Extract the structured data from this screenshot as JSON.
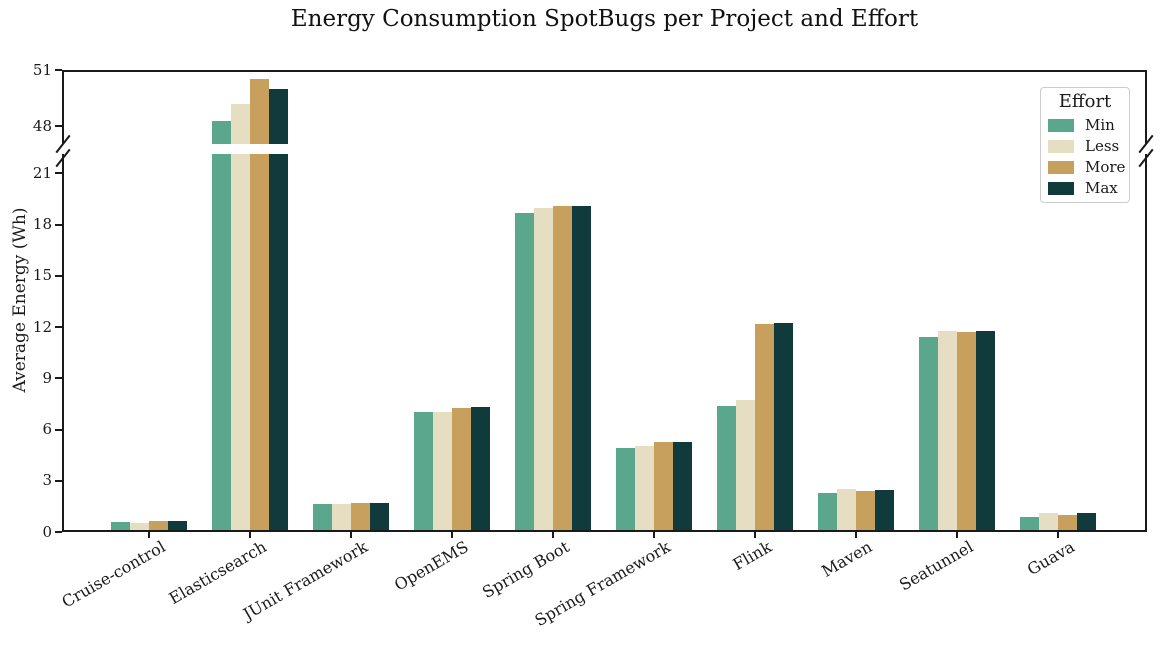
{
  "chart_data": {
    "type": "bar",
    "title": "Energy Consumption SpotBugs per Project and Effort",
    "ylabel": "Average Energy (Wh)",
    "xlabel": "",
    "categories": [
      "Cruise-control",
      "Elasticsearch",
      "JUnit Framework",
      "OpenEMS",
      "Spring Boot",
      "Spring Framework",
      "Flink",
      "Maven",
      "Seatunnel",
      "Guava"
    ],
    "series": [
      {
        "name": "Min",
        "color": "#5BA78E",
        "values": [
          0.6,
          48.3,
          1.65,
          7.0,
          18.7,
          4.9,
          7.35,
          2.3,
          11.4,
          0.9
        ]
      },
      {
        "name": "Less",
        "color": "#E6DEC3",
        "values": [
          0.5,
          49.2,
          1.65,
          7.05,
          18.95,
          5.05,
          7.75,
          2.5,
          11.75,
          1.1
        ]
      },
      {
        "name": "More",
        "color": "#C8A05E",
        "values": [
          0.62,
          50.5,
          1.67,
          7.25,
          19.1,
          5.25,
          12.15,
          2.4,
          11.7,
          1.0
        ]
      },
      {
        "name": "Max",
        "color": "#103A3C",
        "values": [
          0.62,
          50.0,
          1.68,
          7.3,
          19.1,
          5.25,
          12.25,
          2.45,
          11.75,
          1.1
        ]
      }
    ],
    "legend": {
      "title": "Effort",
      "position": "upper-right",
      "entries": [
        "Min",
        "Less",
        "More",
        "Max"
      ]
    },
    "broken_y_axis": {
      "lower_range": [
        0,
        22.13
      ],
      "upper_range": [
        47.05,
        51.0
      ],
      "lower_ticks": [
        0,
        3,
        6,
        9,
        12,
        15,
        18,
        21
      ],
      "upper_ticks": [
        48,
        51
      ]
    },
    "grid": false
  }
}
